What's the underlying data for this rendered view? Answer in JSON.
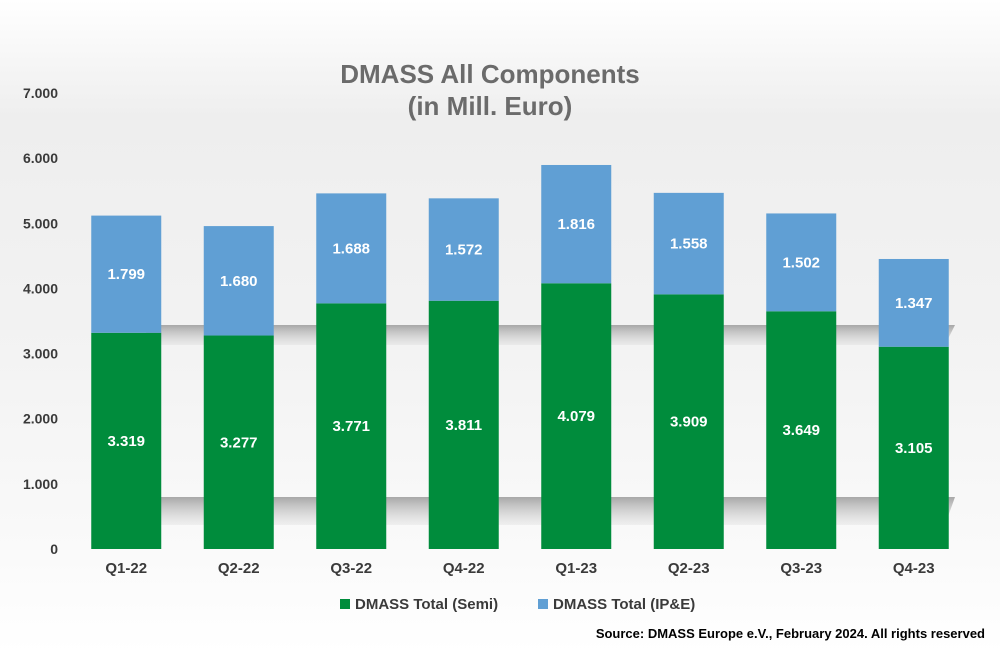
{
  "colors": {
    "semi": "#008c3c",
    "ipe": "#609fd4",
    "title": "#6b6b6b",
    "axis_text": "#3a3a3a",
    "source": "#000000"
  },
  "source_note": "Source: DMASS Europe e.V., February 2024. All rights reserved",
  "chart_data": {
    "type": "bar",
    "stacked": true,
    "title": "DMASS All Components",
    "subtitle": "(in Mill. Euro)",
    "xlabel": "",
    "ylabel": "",
    "ylim": [
      0,
      7000
    ],
    "yticks": [
      0,
      1000,
      2000,
      3000,
      4000,
      5000,
      6000,
      7000
    ],
    "ytick_labels": [
      "0",
      "1.000",
      "2.000",
      "3.000",
      "4.000",
      "5.000",
      "6.000",
      "7.000"
    ],
    "grid": false,
    "legend_position": "bottom",
    "categories": [
      "Q1-22",
      "Q2-22",
      "Q3-22",
      "Q4-22",
      "Q1-23",
      "Q2-23",
      "Q3-23",
      "Q4-23"
    ],
    "series": [
      {
        "name": "DMASS Total (Semi)",
        "values": [
          3319,
          3277,
          3771,
          3811,
          4079,
          3909,
          3649,
          3105
        ],
        "labels": [
          "3.319",
          "3.277",
          "3.771",
          "3.811",
          "4.079",
          "3.909",
          "3.649",
          "3.105"
        ]
      },
      {
        "name": "DMASS Total (IP&E)",
        "values": [
          1799,
          1680,
          1688,
          1572,
          1816,
          1558,
          1502,
          1347
        ],
        "labels": [
          "1.799",
          "1.680",
          "1.688",
          "1.572",
          "1.816",
          "1.558",
          "1.502",
          "1.347"
        ]
      }
    ]
  }
}
